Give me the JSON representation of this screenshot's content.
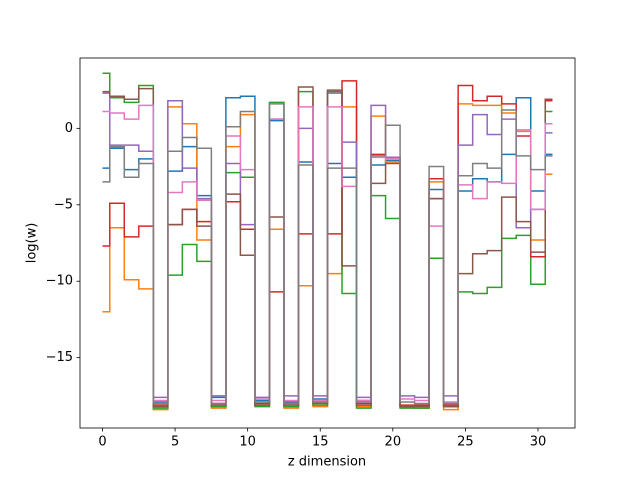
{
  "chart_data": {
    "type": "step",
    "xlabel": "z dimension",
    "ylabel": "log(w)",
    "x": [
      0,
      1,
      2,
      3,
      4,
      5,
      6,
      7,
      8,
      9,
      10,
      11,
      12,
      13,
      14,
      15,
      16,
      17,
      18,
      19,
      20,
      21,
      22,
      23,
      24,
      25,
      26,
      27,
      28,
      29,
      30,
      31
    ],
    "series": [
      {
        "color": "#1f77b4",
        "values": [
          -2.6,
          -1.3,
          -2.7,
          -2.0,
          -17.9,
          -2.8,
          -1.2,
          -4.4,
          -17.6,
          2.0,
          2.1,
          -17.8,
          0.5,
          -17.9,
          -2.2,
          -17.7,
          -2.3,
          -3.2,
          -17.8,
          -2.4,
          -2.1,
          -18.2,
          -18.1,
          -4.0,
          -18.0,
          -4.1,
          -3.3,
          -3.5,
          -1.7,
          2.0,
          -4.1,
          -1.7
        ]
      },
      {
        "color": "#ff7f0e",
        "values": [
          -12.0,
          -6.5,
          -9.9,
          -10.5,
          -18.4,
          1.4,
          0.3,
          -7.3,
          -18.3,
          -1.2,
          0.9,
          -18.1,
          -6.6,
          -18.3,
          -10.3,
          -18.2,
          -9.5,
          1.4,
          -18.2,
          0.8,
          -2.2,
          -18.2,
          -18.3,
          -3.5,
          -18.4,
          1.6,
          1.5,
          1.5,
          1.0,
          -0.2,
          -7.3,
          -3.0
        ]
      },
      {
        "color": "#2ca02c",
        "values": [
          3.6,
          2.0,
          1.7,
          2.8,
          -18.3,
          -9.6,
          -7.6,
          -8.7,
          -18.2,
          -2.9,
          -3.2,
          -18.2,
          1.7,
          -18.2,
          2.4,
          -18.1,
          2.4,
          -10.8,
          -18.3,
          -4.4,
          -5.9,
          -18.3,
          -18.3,
          -8.5,
          -18.2,
          -10.7,
          -10.8,
          -10.4,
          -7.2,
          -7.0,
          -10.2,
          1.1
        ]
      },
      {
        "color": "#d62728",
        "values": [
          -7.7,
          -4.9,
          -7.1,
          -6.4,
          -18.1,
          -6.3,
          -5.3,
          -6.1,
          -18.0,
          -4.8,
          -6.6,
          -18.0,
          -10.7,
          -18.0,
          -6.9,
          -17.9,
          -6.9,
          3.1,
          -18.0,
          -1.7,
          -1.9,
          -18.1,
          -18.1,
          -3.3,
          -18.1,
          2.8,
          1.8,
          2.1,
          1.6,
          -0.5,
          -8.4,
          1.8
        ]
      },
      {
        "color": "#9467bd",
        "values": [
          2.3,
          -1.1,
          -1.1,
          -1.5,
          -17.6,
          1.8,
          -2.6,
          -4.6,
          -17.5,
          -2.3,
          -6.3,
          -17.6,
          0.6,
          -17.5,
          0.0,
          -17.5,
          2.3,
          -0.9,
          -17.6,
          1.5,
          -1.9,
          -17.5,
          -17.6,
          -4.6,
          -17.5,
          -1.1,
          0.9,
          -0.4,
          0.6,
          -6.5,
          -5.3,
          -0.3
        ]
      },
      {
        "color": "#8c564b",
        "values": [
          2.4,
          2.1,
          1.9,
          2.6,
          -18.2,
          -6.3,
          -5.3,
          -6.4,
          -18.1,
          -4.3,
          -8.3,
          -18.1,
          -5.8,
          -18.1,
          2.7,
          -18.0,
          2.5,
          -9.0,
          -18.1,
          -3.6,
          -2.3,
          -18.2,
          -18.2,
          -4.6,
          -18.2,
          -9.5,
          -8.2,
          -8.0,
          -4.5,
          -6.1,
          -8.1,
          1.9
        ]
      },
      {
        "color": "#e377c2",
        "values": [
          1.1,
          1.0,
          0.6,
          1.5,
          -17.8,
          -4.2,
          -3.5,
          -4.7,
          -17.8,
          -0.5,
          -2.7,
          -17.7,
          0.6,
          -17.8,
          1.4,
          -17.8,
          1.4,
          -3.8,
          -17.8,
          -1.9,
          -2.0,
          -17.7,
          -17.8,
          -6.4,
          -17.9,
          -3.7,
          -4.6,
          -3.5,
          -3.6,
          -0.1,
          -5.3,
          0.3
        ]
      },
      {
        "color": "#7f7f7f",
        "values": [
          -3.5,
          -1.2,
          -3.2,
          -2.3,
          -18.0,
          -1.5,
          -0.6,
          -1.3,
          -18.0,
          0.1,
          1.1,
          -17.9,
          1.6,
          -18.0,
          -2.4,
          -17.9,
          -2.6,
          -2.6,
          -17.9,
          -1.8,
          0.2,
          -17.9,
          -18.0,
          -2.5,
          -18.0,
          -3.1,
          -2.3,
          -2.6,
          1.2,
          -1.8,
          -2.7,
          -1.8
        ]
      }
    ],
    "xlim": [
      -1.55,
      32.55
    ],
    "xticks": [
      0,
      5,
      10,
      15,
      20,
      25,
      30
    ],
    "ylim": [
      -19.6,
      4.6
    ],
    "yticks": [
      {
        "value": -15,
        "label": "−15"
      },
      {
        "value": -10,
        "label": "−10"
      },
      {
        "value": -5,
        "label": "−5"
      },
      0
    ],
    "grid": false
  }
}
